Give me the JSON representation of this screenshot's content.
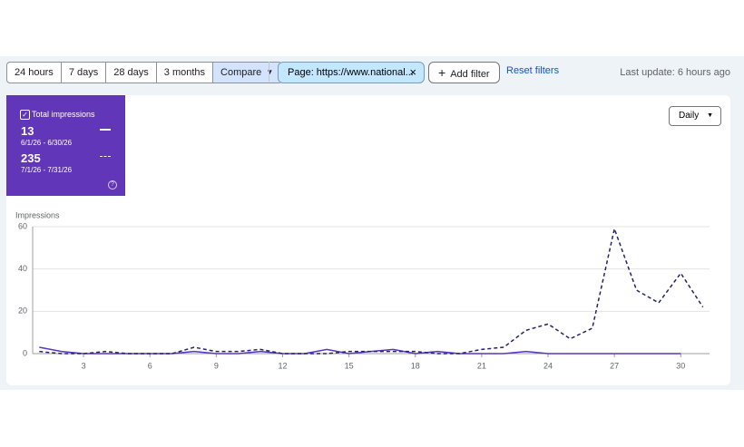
{
  "toolbar": {
    "ranges": [
      "24 hours",
      "7 days",
      "28 days",
      "3 months"
    ],
    "compare": "Compare",
    "filter": "Page: https://www.national...",
    "add_filter": "Add filter",
    "reset": "Reset filters",
    "last_update": "Last update: 6 hours ago"
  },
  "summary": {
    "label": "Total impressions",
    "totals": [
      13,
      235
    ]
  },
  "granularity": "Daily",
  "chart_data": {
    "type": "line",
    "ylabel": "Impressions",
    "x": [
      1,
      2,
      3,
      4,
      5,
      6,
      7,
      8,
      9,
      10,
      11,
      12,
      13,
      14,
      15,
      16,
      17,
      18,
      19,
      20,
      21,
      22,
      23,
      24,
      25,
      26,
      27,
      28,
      29,
      30,
      31
    ],
    "xlim": [
      0.7,
      31.3
    ],
    "xticks": [
      3,
      6,
      9,
      12,
      15,
      18,
      21,
      24,
      27,
      30
    ],
    "ylim": [
      0,
      60
    ],
    "yticks": [
      0,
      20,
      40,
      60
    ],
    "grid": true,
    "series": [
      {
        "name": "6/1/26 - 6/30/26",
        "color": "#5b34c4",
        "dash": false,
        "values": [
          3,
          1,
          0,
          0,
          0,
          0,
          0,
          1,
          0,
          0,
          1,
          0,
          0,
          2,
          0,
          1,
          2,
          0,
          1,
          0,
          0,
          0,
          1,
          0,
          0,
          0,
          0,
          0,
          0,
          0,
          null
        ]
      },
      {
        "name": "7/1/26 - 7/31/26",
        "color": "#25236b",
        "dash": true,
        "values": [
          1,
          0,
          0,
          1,
          0,
          0,
          0,
          3,
          1,
          1,
          2,
          0,
          0,
          0,
          1,
          1,
          1,
          1,
          0,
          0,
          2,
          3,
          11,
          14,
          7,
          12,
          59,
          30,
          24,
          38,
          22
        ]
      }
    ]
  }
}
